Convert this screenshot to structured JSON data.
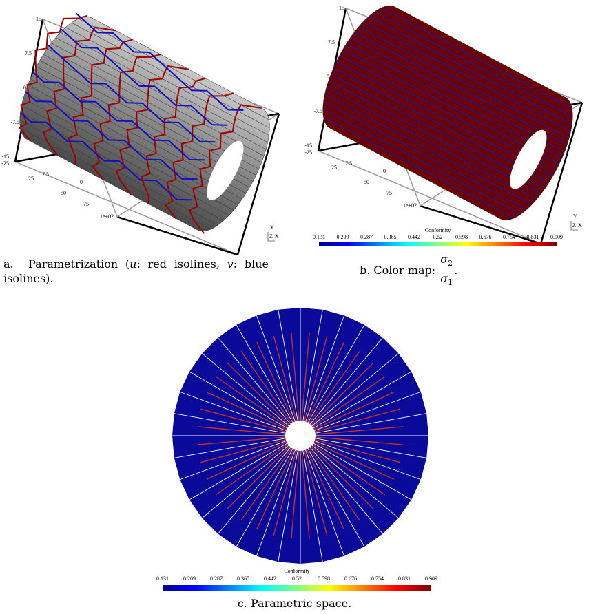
{
  "panel_a": {
    "vertical_axis_labels": [
      "15",
      "7.5",
      "0",
      "-7.5",
      "-15",
      "-25"
    ],
    "depth_axis_labels": [
      "25",
      "7.5",
      "0",
      "50",
      "75",
      "1e+02"
    ],
    "triad": [
      "Y",
      "Z",
      "X"
    ],
    "caption": {
      "label": "a.",
      "before_u": "Parametrization (",
      "u": "u",
      "between": ": red isolines, ",
      "v": "v",
      "after_v": ": blue isolines)."
    }
  },
  "panel_b": {
    "vertical_axis_labels": [
      "15",
      "7.5",
      "0",
      "-7.5",
      "-15",
      "-25"
    ],
    "depth_axis_labels": [
      "25",
      "7.5",
      "0",
      "50",
      "75",
      "1e+02"
    ],
    "triad": [
      "Y",
      "Z",
      "X"
    ],
    "colorbar": {
      "title": "Conformity",
      "labels": [
        "0.131",
        "0.209",
        "0.287",
        "0.365",
        "0.442",
        "0.52",
        "0.598",
        "0.676",
        "0.754",
        "0.831",
        "0.909"
      ]
    },
    "caption": {
      "label": "b.",
      "text": "Color map:",
      "numerator": {
        "symbol": "σ",
        "subscript": "2"
      },
      "denominator": {
        "symbol": "σ",
        "subscript": "1"
      },
      "end": "."
    }
  },
  "panel_c": {
    "colorbar": {
      "title": "Conformity",
      "labels": [
        "0.131",
        "0.209",
        "0.287",
        "0.365",
        "0.442",
        "0.52",
        "0.598",
        "0.676",
        "0.754",
        "0.831",
        "0.909"
      ]
    },
    "caption": {
      "label": "c.",
      "text": "Parametric space."
    }
  }
}
